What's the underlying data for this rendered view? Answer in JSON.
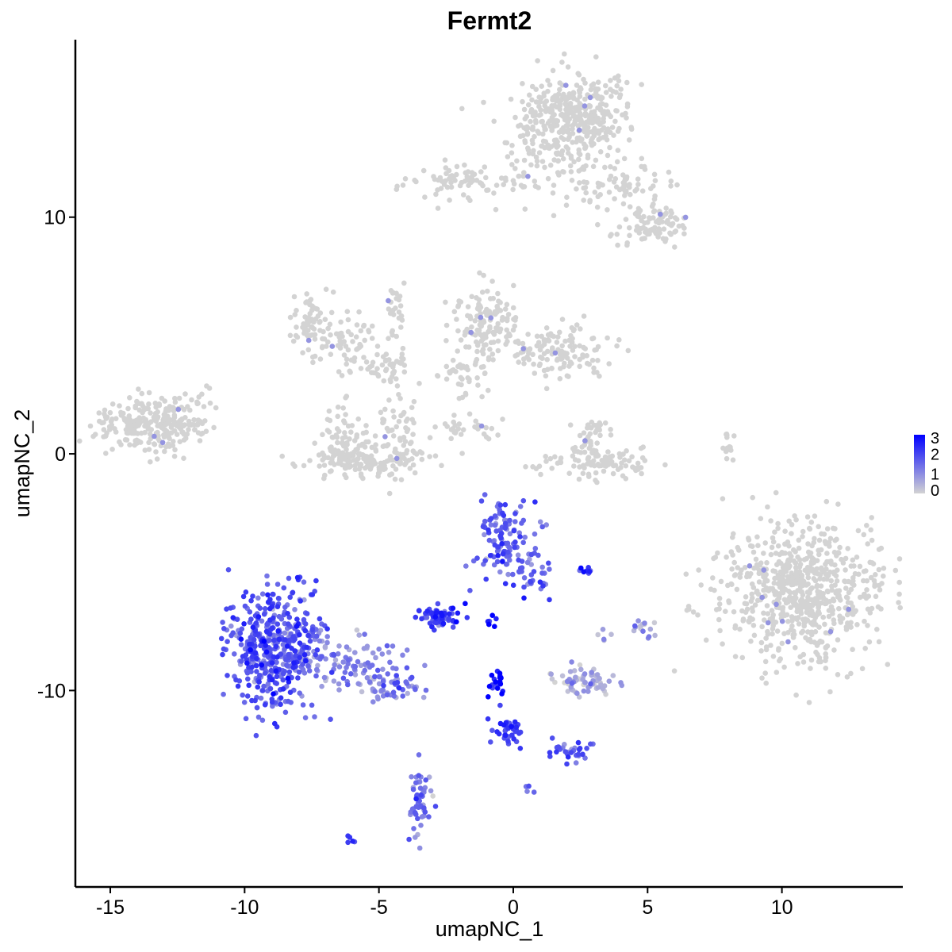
{
  "chart_data": {
    "type": "scatter",
    "title": "Fermt2",
    "xlabel": "umapNC_1",
    "ylabel": "umapNC_2",
    "xlim": [
      -16.3,
      14.5
    ],
    "ylim": [
      -18.3,
      17.5
    ],
    "x_ticks": [
      -15,
      -10,
      -5,
      0,
      5,
      10
    ],
    "y_ticks": [
      -10,
      0,
      10
    ],
    "grid": false,
    "legend": {
      "placement": "right",
      "type": "colorbar",
      "ticks": [
        0,
        1,
        2,
        3
      ],
      "low_color": "#d3d3d3",
      "high_color": "#0000ff"
    },
    "colors": {
      "low": "#d3d3d3",
      "high": "#0000ff"
    },
    "clusters": [
      {
        "cx": 2.2,
        "cy": 14.2,
        "sx": 1.1,
        "sy": 0.9,
        "n": 380,
        "expr": 0
      },
      {
        "cx": 1.5,
        "cy": 12.3,
        "sx": 0.9,
        "sy": 0.8,
        "n": 70,
        "expr": 0
      },
      {
        "cx": 4.0,
        "cy": 11.2,
        "sx": 1.0,
        "sy": 0.6,
        "n": 70,
        "expr": 0
      },
      {
        "cx": 5.3,
        "cy": 9.6,
        "sx": 0.7,
        "sy": 0.45,
        "n": 90,
        "expr": 0
      },
      {
        "cx": -1.8,
        "cy": 11.6,
        "sx": 1.2,
        "sy": 0.35,
        "n": 80,
        "expr": 0
      },
      {
        "cx": -7.5,
        "cy": 5.5,
        "sx": 0.45,
        "sy": 0.6,
        "n": 70,
        "expr": 0
      },
      {
        "cx": -6.2,
        "cy": 4.6,
        "sx": 0.9,
        "sy": 0.5,
        "n": 60,
        "expr": 0
      },
      {
        "cx": -4.6,
        "cy": 3.7,
        "sx": 0.6,
        "sy": 0.3,
        "n": 40,
        "expr": 0
      },
      {
        "cx": -4.4,
        "cy": 6.3,
        "sx": 0.2,
        "sy": 0.6,
        "n": 25,
        "expr": 0
      },
      {
        "cx": -1.0,
        "cy": 5.6,
        "sx": 0.6,
        "sy": 0.8,
        "n": 120,
        "expr": 0
      },
      {
        "cx": 1.5,
        "cy": 4.3,
        "sx": 1.1,
        "sy": 0.6,
        "n": 140,
        "expr": 0
      },
      {
        "cx": -1.8,
        "cy": 3.4,
        "sx": 0.5,
        "sy": 0.6,
        "n": 40,
        "expr": 0
      },
      {
        "cx": -5.5,
        "cy": -0.2,
        "sx": 1.1,
        "sy": 0.45,
        "n": 180,
        "expr": 0
      },
      {
        "cx": -6.4,
        "cy": 0.9,
        "sx": 0.3,
        "sy": 0.6,
        "n": 40,
        "expr": 0
      },
      {
        "cx": -4.3,
        "cy": 1.2,
        "sx": 0.4,
        "sy": 0.8,
        "n": 50,
        "expr": 0
      },
      {
        "cx": -1.8,
        "cy": 1.0,
        "sx": 0.6,
        "sy": 0.3,
        "n": 30,
        "expr": 0
      },
      {
        "cx": -13.7,
        "cy": 1.2,
        "sx": 0.9,
        "sy": 0.55,
        "n": 220,
        "expr": 0
      },
      {
        "cx": -12.2,
        "cy": 1.6,
        "sx": 0.5,
        "sy": 0.7,
        "n": 50,
        "expr": 0
      },
      {
        "cx": 3.1,
        "cy": -0.4,
        "sx": 1.0,
        "sy": 0.35,
        "n": 100,
        "expr": 0
      },
      {
        "cx": 3.0,
        "cy": 0.8,
        "sx": 0.35,
        "sy": 0.5,
        "n": 40,
        "expr": 0
      },
      {
        "cx": 8.0,
        "cy": 0.3,
        "sx": 0.12,
        "sy": 0.5,
        "n": 15,
        "expr": 0
      },
      {
        "cx": 10.7,
        "cy": -5.8,
        "sx": 1.5,
        "sy": 1.4,
        "n": 700,
        "expr": 0
      },
      {
        "cx": -8.8,
        "cy": -8.3,
        "sx": 0.85,
        "sy": 1.2,
        "n": 480,
        "expr": 1.7
      },
      {
        "cx": -6.3,
        "cy": -8.7,
        "sx": 0.9,
        "sy": 0.6,
        "n": 90,
        "expr": 1.0
      },
      {
        "cx": -4.6,
        "cy": -9.9,
        "sx": 0.6,
        "sy": 0.35,
        "n": 60,
        "expr": 1.1
      },
      {
        "cx": -0.3,
        "cy": -3.7,
        "sx": 0.5,
        "sy": 0.8,
        "n": 130,
        "expr": 1.6
      },
      {
        "cx": 0.9,
        "cy": -5.2,
        "sx": 0.3,
        "sy": 0.4,
        "n": 25,
        "expr": 1.5
      },
      {
        "cx": -2.6,
        "cy": -6.9,
        "sx": 0.45,
        "sy": 0.3,
        "n": 60,
        "expr": 2.0
      },
      {
        "cx": -0.8,
        "cy": -7.1,
        "sx": 0.12,
        "sy": 0.12,
        "n": 6,
        "expr": 2.5
      },
      {
        "cx": 2.6,
        "cy": -9.6,
        "sx": 0.6,
        "sy": 0.3,
        "n": 70,
        "expr": 0.6
      },
      {
        "cx": 5.0,
        "cy": -7.3,
        "sx": 0.25,
        "sy": 0.25,
        "n": 15,
        "expr": 0.8
      },
      {
        "cx": -0.6,
        "cy": -9.6,
        "sx": 0.15,
        "sy": 0.4,
        "n": 20,
        "expr": 2.9
      },
      {
        "cx": -0.2,
        "cy": -11.6,
        "sx": 0.3,
        "sy": 0.4,
        "n": 40,
        "expr": 2.0
      },
      {
        "cx": 2.2,
        "cy": -12.6,
        "sx": 0.4,
        "sy": 0.25,
        "n": 30,
        "expr": 1.6
      },
      {
        "cx": -3.5,
        "cy": -14.8,
        "sx": 0.2,
        "sy": 0.7,
        "n": 55,
        "expr": 1.3
      },
      {
        "cx": 2.8,
        "cy": -5.0,
        "sx": 0.2,
        "sy": 0.1,
        "n": 8,
        "expr": 2.2
      },
      {
        "cx": -6.1,
        "cy": -16.3,
        "sx": 0.12,
        "sy": 0.08,
        "n": 5,
        "expr": 2.0
      },
      {
        "cx": 0.6,
        "cy": -14.1,
        "sx": 0.1,
        "sy": 0.1,
        "n": 4,
        "expr": 1.5
      },
      {
        "cx": 3.5,
        "cy": -7.7,
        "sx": 0.15,
        "sy": 0.15,
        "n": 5,
        "expr": 0.8
      }
    ]
  }
}
